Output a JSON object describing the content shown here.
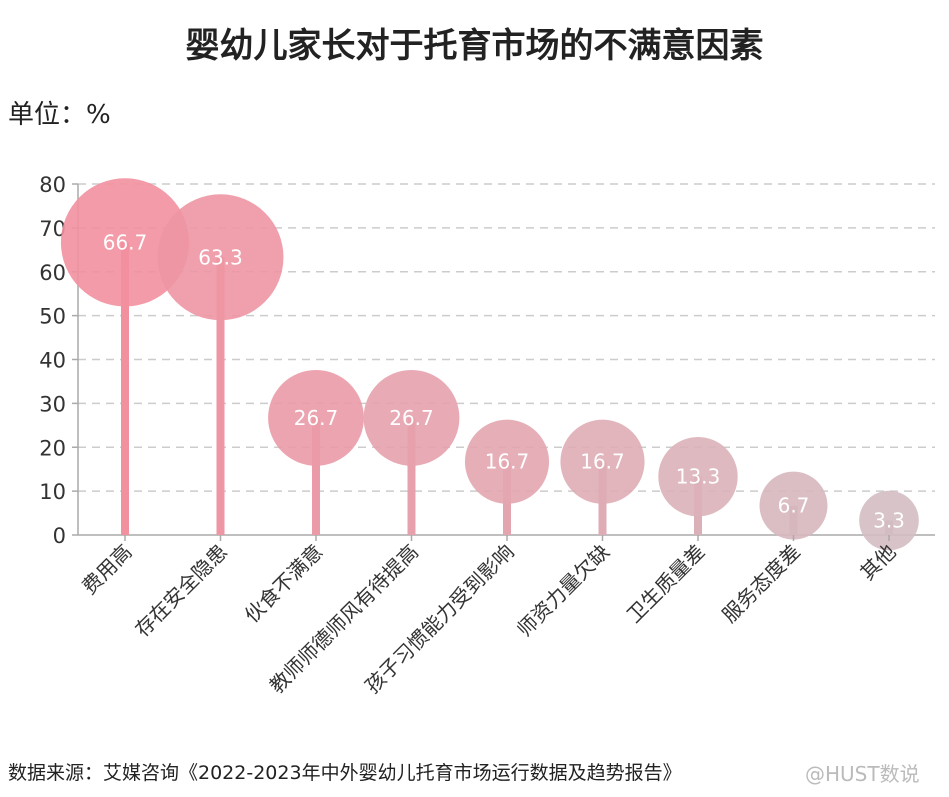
{
  "chart_data": {
    "type": "bubble-lollipop",
    "title": "婴幼儿家长对于托育市场的不满意因素",
    "unit_label": "单位：%",
    "categories": [
      "费用高",
      "存在安全隐患",
      "伙食不满意",
      "教师师德师风有待提高",
      "孩子习惯能力受到影响",
      "师资力量欠缺",
      "卫生质量差",
      "服务态度差",
      "其他"
    ],
    "values": [
      66.7,
      63.3,
      26.7,
      26.7,
      16.7,
      16.7,
      13.3,
      6.7,
      3.3
    ],
    "ylim": [
      0,
      80
    ],
    "yticks": [
      0,
      10,
      20,
      30,
      40,
      50,
      60,
      70,
      80
    ],
    "grid": true,
    "colors": {
      "start": "#f2909e",
      "end": "#d3bcc2"
    },
    "source": "数据来源：艾媒咨询《2022-2023年中外婴幼儿托育市场运行数据及趋势报告》"
  },
  "watermark": "@HUST数说"
}
